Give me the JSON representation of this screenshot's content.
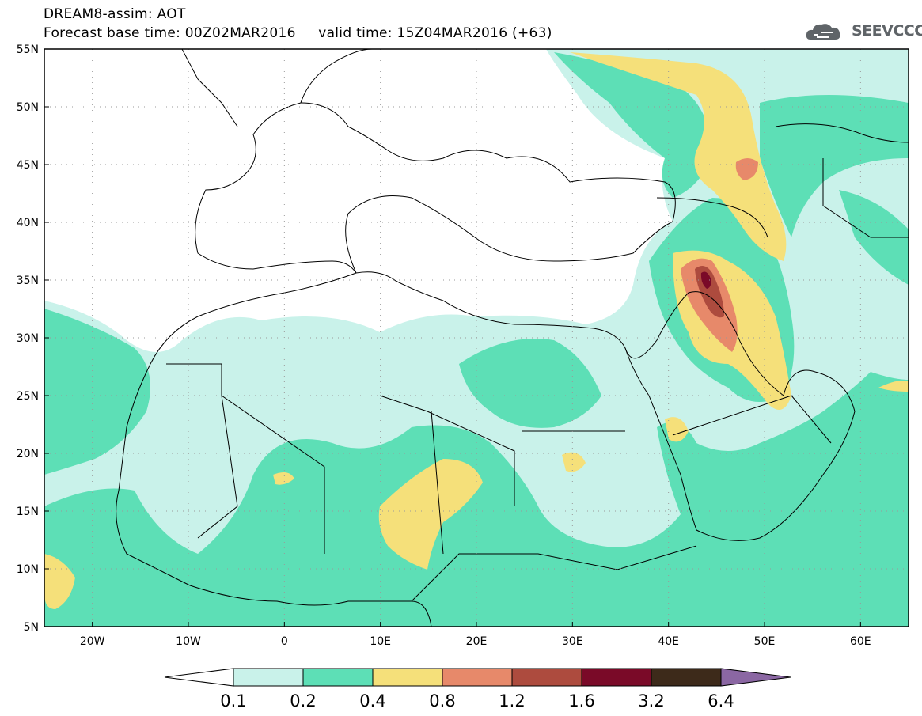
{
  "header": {
    "line1": "DREAM8-assim: AOT",
    "line2": "Forecast base time: 00Z02MAR2016     valid time: 15Z04MAR2016 (+63)"
  },
  "logo": {
    "text": "SEEVCCC",
    "icon": "cloud-logo-icon"
  },
  "map": {
    "lon_range": [
      -25,
      65
    ],
    "lat_range": [
      5,
      55
    ],
    "lon_ticks": [
      {
        "value": -20,
        "label": "20W"
      },
      {
        "value": -10,
        "label": "10W"
      },
      {
        "value": 0,
        "label": "0"
      },
      {
        "value": 10,
        "label": "10E"
      },
      {
        "value": 20,
        "label": "20E"
      },
      {
        "value": 30,
        "label": "30E"
      },
      {
        "value": 40,
        "label": "40E"
      },
      {
        "value": 50,
        "label": "50E"
      },
      {
        "value": 60,
        "label": "60E"
      }
    ],
    "lat_ticks": [
      {
        "value": 55,
        "label": "55N"
      },
      {
        "value": 50,
        "label": "50N"
      },
      {
        "value": 45,
        "label": "45N"
      },
      {
        "value": 40,
        "label": "40N"
      },
      {
        "value": 35,
        "label": "35N"
      },
      {
        "value": 30,
        "label": "30N"
      },
      {
        "value": 25,
        "label": "25N"
      },
      {
        "value": 20,
        "label": "20N"
      },
      {
        "value": 15,
        "label": "15N"
      },
      {
        "value": 10,
        "label": "10N"
      },
      {
        "value": 5,
        "label": "5N"
      }
    ],
    "grid": "dotted"
  },
  "legend": {
    "colors": [
      "#ffffff",
      "#c9f2ea",
      "#5ddfb6",
      "#f5e07a",
      "#e7896a",
      "#ad4b3e",
      "#7a0a28",
      "#3d2a1a",
      "#8b67a3"
    ],
    "labels": [
      "0.1",
      "0.2",
      "0.4",
      "0.8",
      "1.2",
      "1.6",
      "3.2",
      "6.4"
    ]
  }
}
